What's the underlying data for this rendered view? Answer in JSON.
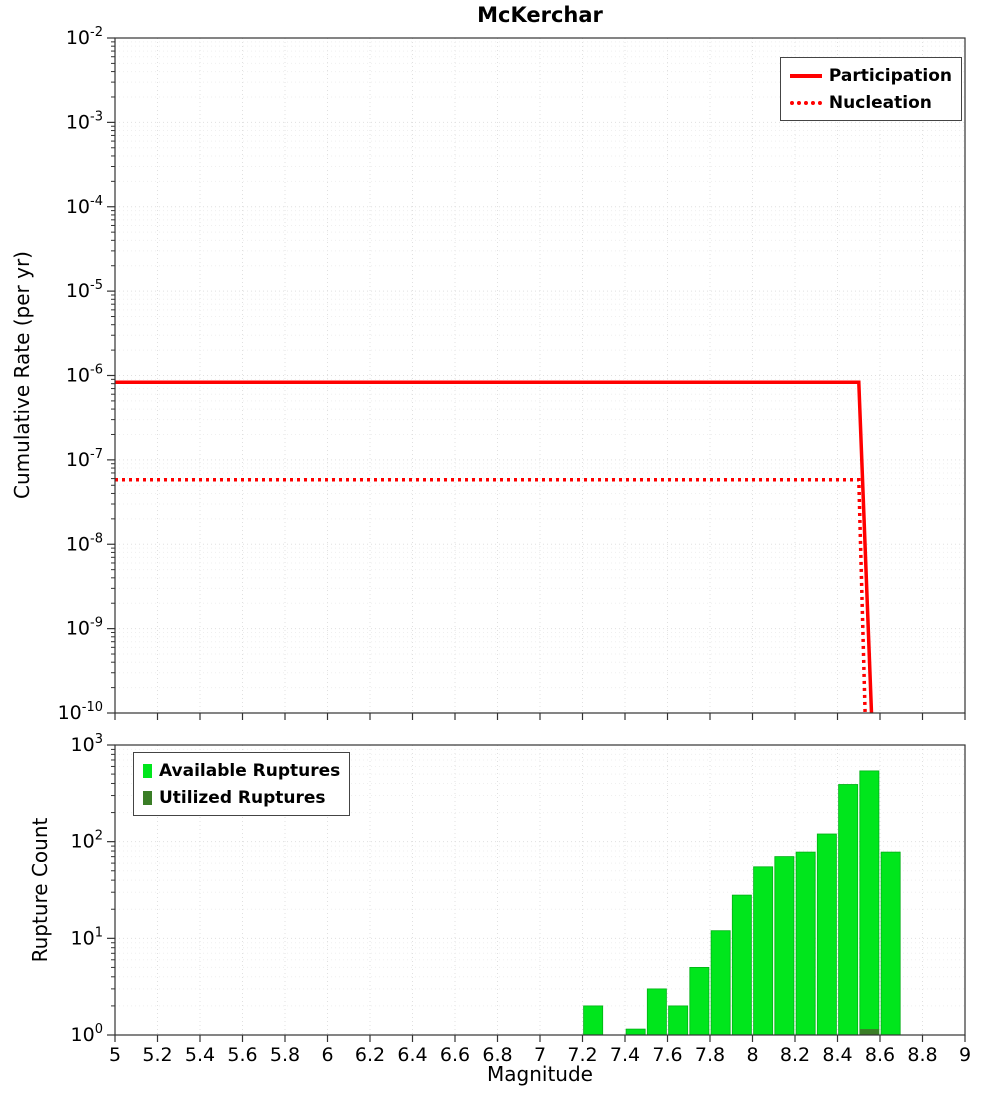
{
  "title": "McKerchar",
  "colors": {
    "participation": "#ff0000",
    "nucleation": "#ff0000",
    "available": "#00e61c",
    "utilized": "#3a7d26",
    "grid_major": "#e0e0e0",
    "grid_minor": "#efefef",
    "axis": "#333333"
  },
  "chart_data": [
    {
      "type": "line",
      "title": "McKerchar",
      "xlabel": "Magnitude",
      "ylabel": "Cumulative Rate (per yr)",
      "xlim": [
        5,
        9
      ],
      "y_exp_range": [
        -10,
        -2
      ],
      "y_tick_exponents": [
        -2,
        -3,
        -4,
        -5,
        -6,
        -7,
        -8,
        -9,
        -10
      ],
      "legend_position": "top-right",
      "grid": true,
      "series": [
        {
          "name": "Participation",
          "style": "solid",
          "color": "#ff0000",
          "points": [
            [
              5,
              8.3e-07
            ],
            [
              8.5,
              8.3e-07
            ],
            [
              8.56,
              1e-10
            ]
          ]
        },
        {
          "name": "Nucleation",
          "style": "dotted",
          "color": "#ff0000",
          "points": [
            [
              5,
              5.8e-08
            ],
            [
              8.5,
              5.8e-08
            ],
            [
              8.53,
              1e-10
            ]
          ]
        }
      ]
    },
    {
      "type": "bar",
      "xlabel": "Magnitude",
      "ylabel": "Rupture Count",
      "xlim": [
        5,
        9
      ],
      "y_exp_range": [
        0,
        3
      ],
      "y_tick_exponents": [
        3,
        2,
        1,
        0
      ],
      "x_tick_labels": [
        "5",
        "5.2",
        "5.4",
        "5.6",
        "5.8",
        "6",
        "6.2",
        "6.4",
        "6.6",
        "6.8",
        "7",
        "7.2",
        "7.4",
        "7.6",
        "7.8",
        "8",
        "8.2",
        "8.4",
        "8.6",
        "8.8",
        "9"
      ],
      "bar_width": 0.09,
      "legend_position": "top-left",
      "grid": true,
      "series": [
        {
          "name": "Available Ruptures",
          "color": "#00e61c",
          "bars": [
            [
              7.25,
              2
            ],
            [
              7.45,
              1.15
            ],
            [
              7.55,
              3
            ],
            [
              7.65,
              2
            ],
            [
              7.75,
              5
            ],
            [
              7.85,
              12
            ],
            [
              7.95,
              28
            ],
            [
              8.05,
              55
            ],
            [
              8.15,
              70
            ],
            [
              8.25,
              78
            ],
            [
              8.35,
              120
            ],
            [
              8.45,
              390
            ],
            [
              8.55,
              540
            ],
            [
              8.65,
              78
            ]
          ]
        },
        {
          "name": "Utilized Ruptures",
          "color": "#3a7d26",
          "bars": [
            [
              8.55,
              1.15
            ]
          ]
        }
      ]
    }
  ]
}
